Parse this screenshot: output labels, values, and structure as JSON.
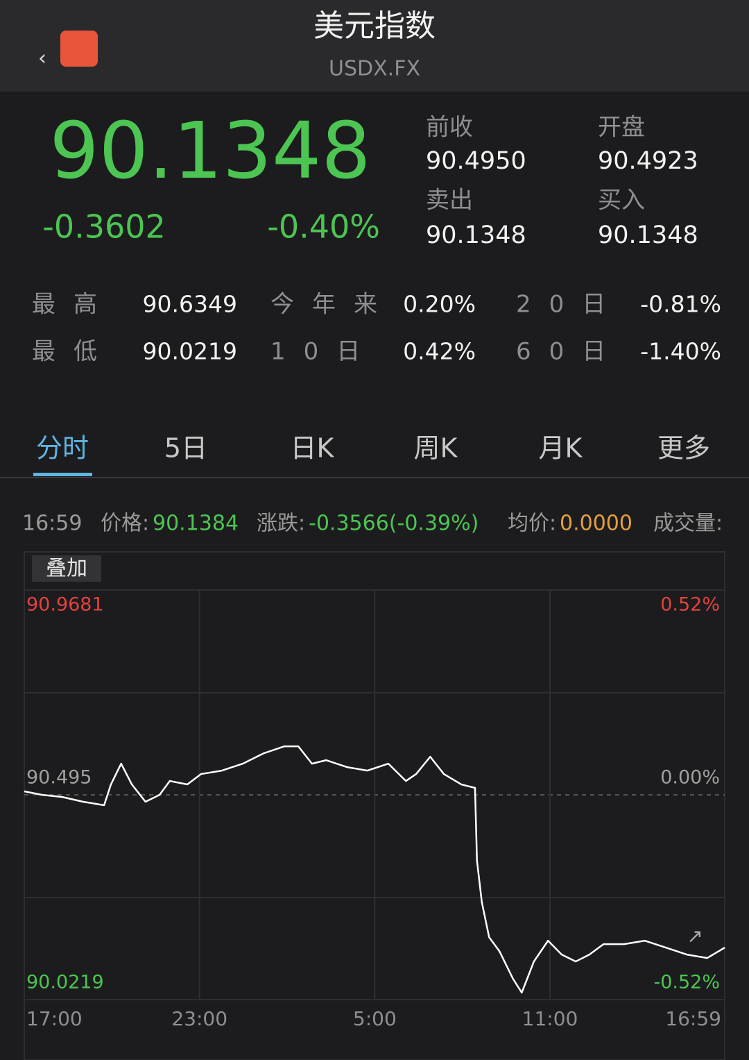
{
  "header": {
    "title": "美元指数",
    "subtitle": "USDX.FX"
  },
  "quote": {
    "price": "90.1348",
    "change": "-0.3602",
    "change_pct": "-0.40%"
  },
  "stats": [
    {
      "label": "前收",
      "value": "90.4950"
    },
    {
      "label": "开盘",
      "value": "90.4923"
    },
    {
      "label": "卖出",
      "value": "90.1348"
    },
    {
      "label": "买入",
      "value": "90.1348"
    }
  ],
  "ranges": [
    [
      {
        "label": "最高",
        "value": "90.6349"
      },
      {
        "label": "今年来",
        "value": "0.20%"
      },
      {
        "label": "20日",
        "value": "-0.81%"
      }
    ],
    [
      {
        "label": "最低",
        "value": "90.0219"
      },
      {
        "label": "10日",
        "value": "0.42%"
      },
      {
        "label": "60日",
        "value": "-1.40%"
      }
    ]
  ],
  "tabs": [
    "分时",
    "5日",
    "日K",
    "周K",
    "月K",
    "更多"
  ],
  "info": {
    "time": "16:59",
    "price_label": "价格:",
    "price": "90.1384",
    "change_label": "涨跌:",
    "change": "-0.3566(-0.39%)",
    "avg_label": "均价:",
    "avg": "0.0000",
    "volume_label": "成交量:"
  },
  "overlay_button": "叠加",
  "chart_data": {
    "type": "line",
    "x": [
      0,
      36,
      78,
      121,
      164,
      178,
      199,
      221,
      249,
      278,
      299,
      335,
      363,
      406,
      449,
      492,
      534,
      563,
      591,
      620,
      663,
      705,
      748,
      784,
      805,
      834,
      862,
      898,
      926,
      930,
      940,
      955,
      976,
      1004,
      1022,
      1047,
      1076,
      1104,
      1133,
      1161,
      1190,
      1232,
      1275,
      1318,
      1361,
      1403,
      1439
    ],
    "series": [
      {
        "color": "#ffffff",
        "values": [
          90.503,
          90.495,
          90.49,
          90.479,
          90.471,
          90.519,
          90.567,
          90.519,
          90.479,
          90.495,
          90.527,
          90.519,
          90.543,
          90.551,
          90.567,
          90.591,
          90.607,
          90.607,
          90.567,
          90.575,
          90.559,
          90.551,
          90.567,
          90.527,
          90.543,
          90.583,
          90.543,
          90.519,
          90.511,
          90.343,
          90.247,
          90.166,
          90.134,
          90.07,
          90.038,
          90.11,
          90.158,
          90.126,
          90.11,
          90.126,
          90.15,
          90.15,
          90.158,
          90.142,
          90.126,
          90.118,
          90.142
        ]
      }
    ],
    "xlim": [
      0,
      1439
    ],
    "xticks": [
      {
        "value": 0,
        "label": "17:00"
      },
      {
        "value": 360,
        "label": "23:00"
      },
      {
        "value": 720,
        "label": "5:00"
      },
      {
        "value": 1080,
        "label": "11:00"
      },
      {
        "value": 1439,
        "label": "16:59"
      }
    ],
    "ylim": [
      90.0219,
      90.9681
    ],
    "yticks": [
      90.0219,
      90.495,
      90.9681
    ],
    "y2lim": [
      -0.52,
      0.52
    ],
    "y2ticks": [
      {
        "value": -0.52,
        "label": "-0.52%"
      },
      {
        "value": 0,
        "label": "0.00%"
      },
      {
        "value": 0.52,
        "label": "0.52%"
      }
    ],
    "colors": {
      "up": "#e5413d",
      "down": "#4cc552",
      "flat": "#a0a0a0"
    }
  }
}
